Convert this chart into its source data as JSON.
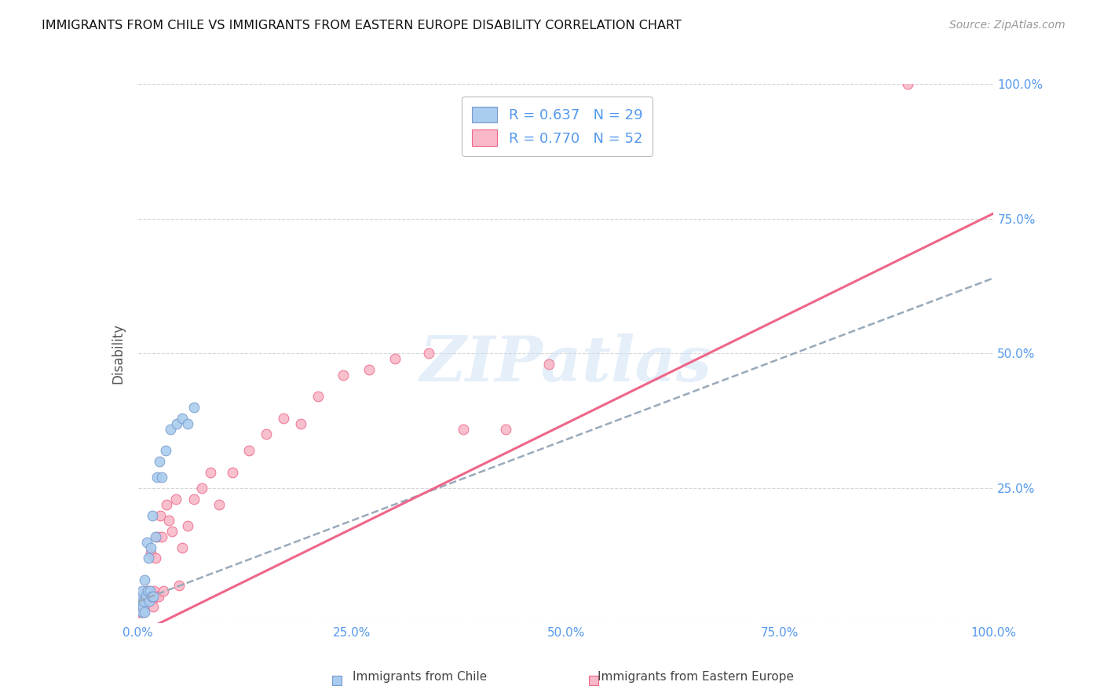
{
  "title": "IMMIGRANTS FROM CHILE VS IMMIGRANTS FROM EASTERN EUROPE DISABILITY CORRELATION CHART",
  "source": "Source: ZipAtlas.com",
  "ylabel": "Disability",
  "chile_R": 0.637,
  "chile_N": 29,
  "eastern_R": 0.77,
  "eastern_N": 52,
  "chile_color": "#aaccee",
  "eastern_color": "#f8b8c8",
  "chile_line_color": "#7799cc",
  "eastern_line_color": "#ee6688",
  "axis_label_color": "#5599ee",
  "xlim": [
    0,
    1
  ],
  "ylim": [
    0,
    1
  ],
  "chile_points_x": [
    0.002,
    0.003,
    0.004,
    0.005,
    0.005,
    0.006,
    0.007,
    0.008,
    0.008,
    0.009,
    0.01,
    0.011,
    0.012,
    0.013,
    0.014,
    0.015,
    0.016,
    0.017,
    0.018,
    0.02,
    0.022,
    0.025,
    0.028,
    0.032,
    0.038,
    0.045,
    0.052,
    0.058,
    0.065
  ],
  "chile_points_y": [
    0.04,
    0.03,
    0.05,
    0.02,
    0.06,
    0.03,
    0.04,
    0.02,
    0.08,
    0.05,
    0.15,
    0.06,
    0.12,
    0.04,
    0.06,
    0.14,
    0.05,
    0.2,
    0.05,
    0.16,
    0.27,
    0.3,
    0.27,
    0.32,
    0.36,
    0.37,
    0.38,
    0.37,
    0.4
  ],
  "eastern_points_x": [
    0.001,
    0.002,
    0.003,
    0.004,
    0.005,
    0.006,
    0.007,
    0.008,
    0.008,
    0.009,
    0.01,
    0.011,
    0.012,
    0.013,
    0.014,
    0.015,
    0.016,
    0.017,
    0.018,
    0.019,
    0.02,
    0.021,
    0.022,
    0.024,
    0.026,
    0.028,
    0.03,
    0.033,
    0.036,
    0.04,
    0.044,
    0.048,
    0.052,
    0.058,
    0.065,
    0.075,
    0.085,
    0.095,
    0.11,
    0.13,
    0.15,
    0.17,
    0.19,
    0.21,
    0.24,
    0.27,
    0.3,
    0.34,
    0.38,
    0.43,
    0.48,
    0.9
  ],
  "eastern_points_y": [
    0.02,
    0.03,
    0.02,
    0.04,
    0.03,
    0.02,
    0.04,
    0.03,
    0.05,
    0.04,
    0.06,
    0.05,
    0.04,
    0.06,
    0.05,
    0.13,
    0.04,
    0.05,
    0.03,
    0.06,
    0.12,
    0.05,
    0.16,
    0.05,
    0.2,
    0.16,
    0.06,
    0.22,
    0.19,
    0.17,
    0.23,
    0.07,
    0.14,
    0.18,
    0.23,
    0.25,
    0.28,
    0.22,
    0.28,
    0.32,
    0.35,
    0.38,
    0.37,
    0.42,
    0.46,
    0.47,
    0.49,
    0.5,
    0.36,
    0.36,
    0.48,
    1.0
  ],
  "chile_slope": 0.6,
  "chile_intercept": 0.04,
  "eastern_slope": 0.78,
  "eastern_intercept": -0.02
}
